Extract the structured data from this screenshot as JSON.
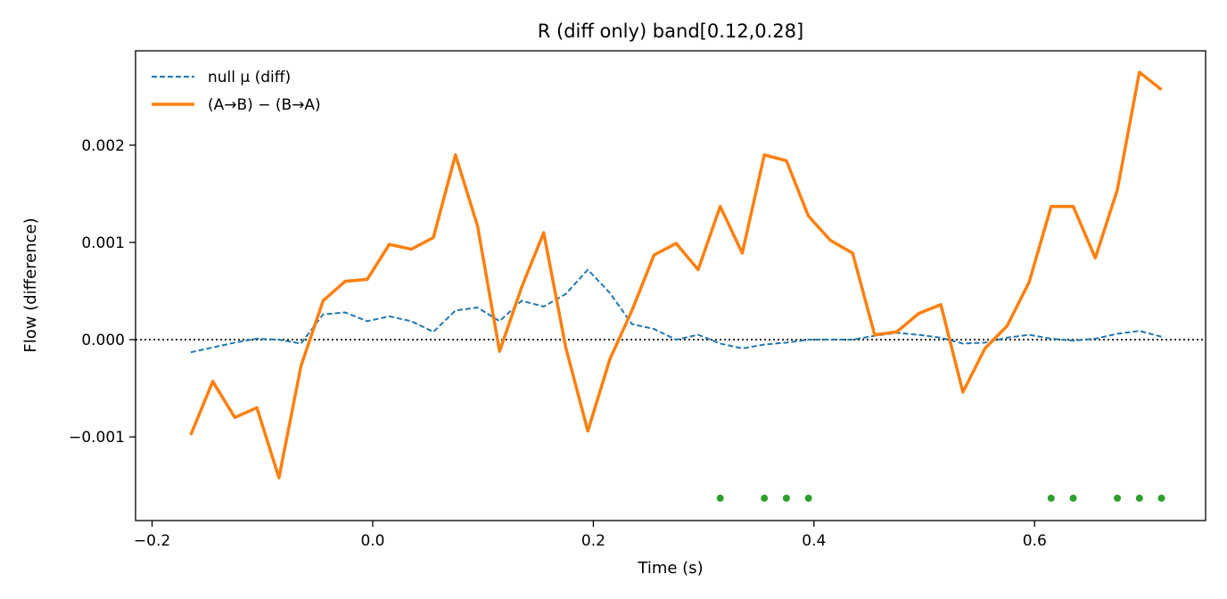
{
  "chart_data": {
    "type": "line",
    "title": "R (diff only)   band[0.12,0.28]",
    "xlabel": "Time (s)",
    "ylabel": "Flow (difference)",
    "xlim": [
      -0.215,
      0.755
    ],
    "ylim": [
      -0.00186,
      0.00297
    ],
    "x_ticks": [
      -0.2,
      0.0,
      0.2,
      0.4,
      0.6
    ],
    "x_tick_labels": [
      "−0.2",
      "0.0",
      "0.2",
      "0.4",
      "0.6"
    ],
    "y_ticks": [
      -0.001,
      0.0,
      0.001,
      0.002
    ],
    "y_tick_labels": [
      "−0.001",
      "0.000",
      "0.001",
      "0.002"
    ],
    "grid": false,
    "legend_position": "top-left",
    "reference_line": {
      "y": 0,
      "style": "dotted",
      "color": "#000000"
    },
    "x": [
      -0.165,
      -0.145,
      -0.125,
      -0.105,
      -0.085,
      -0.065,
      -0.045,
      -0.025,
      -0.005,
      0.015,
      0.035,
      0.055,
      0.075,
      0.095,
      0.115,
      0.135,
      0.155,
      0.175,
      0.195,
      0.215,
      0.235,
      0.255,
      0.275,
      0.295,
      0.315,
      0.335,
      0.355,
      0.375,
      0.395,
      0.415,
      0.435,
      0.455,
      0.475,
      0.495,
      0.515,
      0.535,
      0.555,
      0.575,
      0.595,
      0.615,
      0.635,
      0.655,
      0.675,
      0.695,
      0.715
    ],
    "series": [
      {
        "name": "null μ (diff)",
        "color": "#1f77b4",
        "style": "dashed",
        "values": [
          -0.00013,
          -8e-05,
          -3e-05,
          1e-05,
          0.0,
          -4e-05,
          0.00026,
          0.00028,
          0.00019,
          0.00024,
          0.00019,
          8e-05,
          0.0003,
          0.00033,
          0.00019,
          0.0004,
          0.00034,
          0.00047,
          0.00072,
          0.00048,
          0.00016,
          0.00011,
          0.0,
          5e-05,
          -4e-05,
          -9e-05,
          -5e-05,
          -3e-05,
          0.0,
          0.0,
          0.0,
          4e-05,
          7e-05,
          5e-05,
          2e-05,
          -4e-05,
          -3e-05,
          2e-05,
          5e-05,
          1e-05,
          -1e-05,
          1e-05,
          6e-05,
          9e-05,
          3e-05
        ]
      },
      {
        "name": "(A→B) − (B→A)",
        "color": "#ff7f0e",
        "style": "solid",
        "values": [
          -0.00098,
          -0.00043,
          -0.0008,
          -0.0007,
          -0.00142,
          -0.00027,
          0.0004,
          0.0006,
          0.00062,
          0.00098,
          0.00093,
          0.00105,
          0.0019,
          0.00117,
          -0.00012,
          0.00054,
          0.0011,
          -8e-05,
          -0.00094,
          -0.0002,
          0.0003,
          0.00087,
          0.00099,
          0.00072,
          0.00137,
          0.00089,
          0.0019,
          0.00184,
          0.00127,
          0.00102,
          0.00089,
          5e-05,
          8e-05,
          0.00027,
          0.00036,
          -0.00054,
          -9e-05,
          0.00014,
          0.00059,
          0.00137,
          0.00137,
          0.00084,
          0.00154,
          0.00275,
          0.00257
        ]
      }
    ],
    "significance_markers": {
      "color": "#2ca02c",
      "y": -0.00163,
      "x": [
        0.315,
        0.355,
        0.375,
        0.395,
        0.615,
        0.635,
        0.675,
        0.695,
        0.715
      ]
    }
  }
}
